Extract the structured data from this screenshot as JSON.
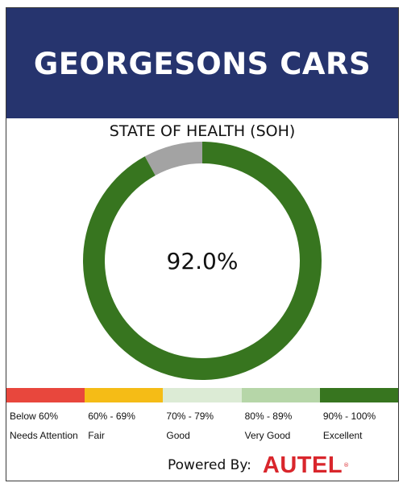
{
  "header": {
    "title": "GEORGESONS CARS",
    "background": "#26346e"
  },
  "gauge": {
    "title": "STATE OF HEALTH (SOH)",
    "value_text": "92.0%",
    "value": 92.0,
    "max": 100,
    "fill_color": "#37751f",
    "remainder_color": "#a3a3a3"
  },
  "scale": [
    {
      "range": "Below 60%",
      "label": "Needs Attention",
      "color": "#e8473d"
    },
    {
      "range": "60% - 69%",
      "label": "Fair",
      "color": "#f5bc16"
    },
    {
      "range": "70% - 79%",
      "label": "Good",
      "color": "#dcebd5"
    },
    {
      "range": "80% - 89%",
      "label": "Very Good",
      "color": "#b6d6a8"
    },
    {
      "range": "90% - 100%",
      "label": "Excellent",
      "color": "#37751f"
    }
  ],
  "footer": {
    "powered_by": "Powered By:",
    "brand": "AUTEL",
    "brand_mark": "®",
    "brand_color": "#d9262c"
  }
}
